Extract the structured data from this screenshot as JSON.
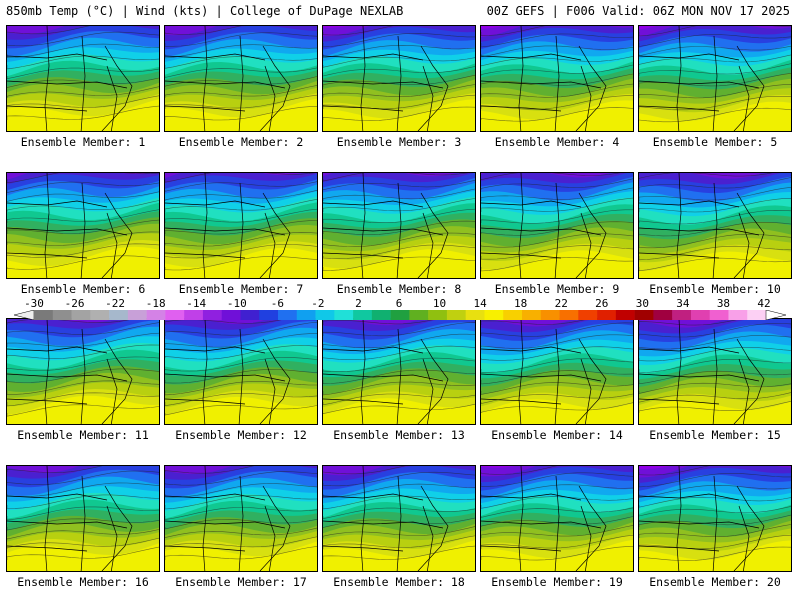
{
  "header": {
    "title_left": "850mb Temp (°C) | Wind (kts) | College of DuPage NEXLAB",
    "title_right": "00Z GEFS | F006 Valid: 06Z MON NOV 17 2025"
  },
  "colorbar": {
    "tick_labels": [
      "-30",
      "-26",
      "-22",
      "-18",
      "-14",
      "-10",
      "-6",
      "-2",
      "2",
      "6",
      "10",
      "14",
      "18",
      "22",
      "26",
      "30",
      "34",
      "38",
      "42"
    ],
    "colors": [
      "#7a7a7a",
      "#8f8f8f",
      "#a3a3a3",
      "#b0b0b0",
      "#a6b8cc",
      "#c8a0d8",
      "#d482e6",
      "#e060f0",
      "#c040e8",
      "#9020e0",
      "#7010d8",
      "#4020d0",
      "#2040e0",
      "#2070f0",
      "#10a0f0",
      "#10c8e8",
      "#20e0d8",
      "#10c8a0",
      "#10b070",
      "#20a040",
      "#60b020",
      "#90c010",
      "#c0d010",
      "#e8e010",
      "#f8f000",
      "#f8d000",
      "#f8b000",
      "#f89000",
      "#f87000",
      "#f04000",
      "#e02000",
      "#c00000",
      "#a00000",
      "#a00040",
      "#c02080",
      "#e040b0",
      "#f060d0",
      "#f8a0e8",
      "#fcd0f4"
    ]
  },
  "panels": [
    {
      "label": "Ensemble Member: 1"
    },
    {
      "label": "Ensemble Member: 2"
    },
    {
      "label": "Ensemble Member: 3"
    },
    {
      "label": "Ensemble Member: 4"
    },
    {
      "label": "Ensemble Member: 5"
    },
    {
      "label": "Ensemble Member: 6"
    },
    {
      "label": "Ensemble Member: 7"
    },
    {
      "label": "Ensemble Member: 8"
    },
    {
      "label": "Ensemble Member: 9"
    },
    {
      "label": "Ensemble Member: 10"
    },
    {
      "label": "Ensemble Member: 11"
    },
    {
      "label": "Ensemble Member: 12"
    },
    {
      "label": "Ensemble Member: 13"
    },
    {
      "label": "Ensemble Member: 14"
    },
    {
      "label": "Ensemble Member: 15"
    },
    {
      "label": "Ensemble Member: 16"
    },
    {
      "label": "Ensemble Member: 17"
    },
    {
      "label": "Ensemble Member: 18"
    },
    {
      "label": "Ensemble Member: 19"
    },
    {
      "label": "Ensemble Member: 20"
    }
  ]
}
